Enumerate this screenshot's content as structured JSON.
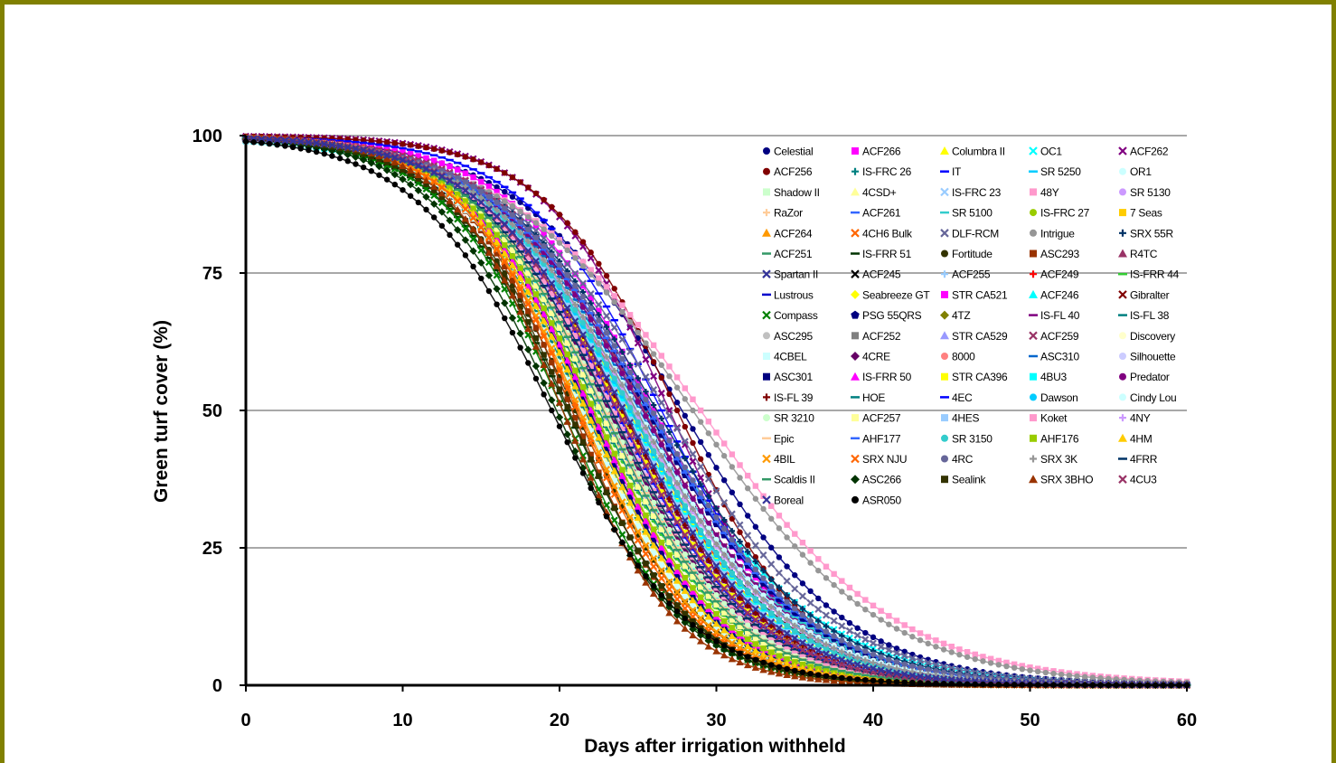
{
  "chart_data": {
    "type": "line",
    "title": "",
    "xlabel": "Days after irrigation withheld",
    "ylabel": "Green turf cover (%)",
    "xlim": [
      0,
      60
    ],
    "ylim": [
      0,
      100
    ],
    "x_ticks": [
      "0",
      "10",
      "20",
      "30",
      "40",
      "50",
      "60"
    ],
    "y_ticks": [
      "0",
      "25",
      "50",
      "75",
      "100"
    ],
    "grid": "horizontal",
    "legend_position": "top-right",
    "x": [
      0,
      1,
      2,
      3,
      4,
      5,
      6,
      7,
      8,
      9,
      10,
      11,
      12,
      13,
      14,
      15,
      16,
      17,
      18,
      19,
      20,
      21,
      22,
      23,
      24,
      25,
      26,
      27,
      28,
      29,
      30,
      31,
      32,
      33,
      34,
      35,
      36,
      37,
      38,
      39,
      40,
      41,
      42,
      43,
      44,
      45,
      46,
      47,
      48,
      49,
      50,
      51,
      52,
      53,
      54,
      55,
      56,
      57,
      58,
      59,
      60
    ],
    "series": [
      {
        "name": "Celestial",
        "color": "#000080",
        "marker": "circle",
        "mid": 27.8,
        "slope": 5.2
      },
      {
        "name": "ACF266",
        "color": "#ff00ff",
        "marker": "square",
        "mid": 26.0,
        "slope": 4.6
      },
      {
        "name": "Columbra II",
        "color": "#ffff00",
        "marker": "triangle",
        "mid": 22.0,
        "slope": 3.8
      },
      {
        "name": "OC1",
        "color": "#00ffff",
        "marker": "x",
        "mid": 25.5,
        "slope": 5.5
      },
      {
        "name": "ACF262",
        "color": "#800080",
        "marker": "x",
        "mid": 27.0,
        "slope": 4.0
      },
      {
        "name": "ACF256",
        "color": "#800000",
        "marker": "circle",
        "mid": 27.5,
        "slope": 4.2
      },
      {
        "name": "IS-FRC 26",
        "color": "#008080",
        "marker": "plus",
        "mid": 24.5,
        "slope": 4.8
      },
      {
        "name": "IT",
        "color": "#0000ff",
        "marker": "dash",
        "mid": 26.5,
        "slope": 4.4
      },
      {
        "name": "SR 5250",
        "color": "#00ccff",
        "marker": "dash",
        "mid": 25.0,
        "slope": 5.0
      },
      {
        "name": "OR1",
        "color": "#ccffff",
        "marker": "circle",
        "mid": 23.8,
        "slope": 4.5
      },
      {
        "name": "Shadow II",
        "color": "#ccffcc",
        "marker": "square",
        "mid": 22.5,
        "slope": 4.2
      },
      {
        "name": "4CSD+",
        "color": "#ffff99",
        "marker": "triangle",
        "mid": 21.5,
        "slope": 4.0
      },
      {
        "name": "IS-FRC 23",
        "color": "#99ccff",
        "marker": "x",
        "mid": 23.5,
        "slope": 4.6
      },
      {
        "name": "48Y",
        "color": "#ff99cc",
        "marker": "square",
        "mid": 29.0,
        "slope": 6.2
      },
      {
        "name": "SR 5130",
        "color": "#cc99ff",
        "marker": "circle",
        "mid": 24.0,
        "slope": 4.7
      },
      {
        "name": "RaZor",
        "color": "#ffcc99",
        "marker": "plus",
        "mid": 22.8,
        "slope": 4.3
      },
      {
        "name": "ACF261",
        "color": "#3366ff",
        "marker": "dash",
        "mid": 25.8,
        "slope": 4.9
      },
      {
        "name": "SR 5100",
        "color": "#33cccc",
        "marker": "dash",
        "mid": 24.8,
        "slope": 5.2
      },
      {
        "name": "IS-FRC 27",
        "color": "#99cc00",
        "marker": "circle",
        "mid": 21.8,
        "slope": 4.1
      },
      {
        "name": "7 Seas",
        "color": "#ffcc00",
        "marker": "square",
        "mid": 23.0,
        "slope": 4.4
      },
      {
        "name": "ACF264",
        "color": "#ff9900",
        "marker": "triangle",
        "mid": 22.2,
        "slope": 4.0
      },
      {
        "name": "4CH6 Bulk",
        "color": "#ff6600",
        "marker": "x",
        "mid": 21.2,
        "slope": 3.9
      },
      {
        "name": "DLF-RCM",
        "color": "#666699",
        "marker": "x",
        "mid": 26.8,
        "slope": 5.3
      },
      {
        "name": "Intrigue",
        "color": "#969696",
        "marker": "circle",
        "mid": 28.5,
        "slope": 6.0
      },
      {
        "name": "SRX 55R",
        "color": "#003366",
        "marker": "plus",
        "mid": 26.2,
        "slope": 5.1
      },
      {
        "name": "ACF251",
        "color": "#339966",
        "marker": "dash",
        "mid": 23.2,
        "slope": 4.3
      },
      {
        "name": "IS-FRR 51",
        "color": "#003300",
        "marker": "dash",
        "mid": 20.5,
        "slope": 4.0
      },
      {
        "name": "Fortitude",
        "color": "#333300",
        "marker": "circle",
        "mid": 21.0,
        "slope": 4.1
      },
      {
        "name": "ASC293",
        "color": "#993300",
        "marker": "square",
        "mid": 20.8,
        "slope": 3.7
      },
      {
        "name": "R4TC",
        "color": "#993366",
        "marker": "triangle",
        "mid": 24.2,
        "slope": 4.5
      },
      {
        "name": "Spartan II",
        "color": "#333399",
        "marker": "x",
        "mid": 23.6,
        "slope": 4.4
      },
      {
        "name": "ACF245",
        "color": "#000000",
        "marker": "x",
        "mid": 22.6,
        "slope": 4.6
      },
      {
        "name": "ACF255",
        "color": "#99ccff",
        "marker": "plus",
        "mid": 25.2,
        "slope": 4.7
      },
      {
        "name": "ACF249",
        "color": "#ff0000",
        "marker": "plus",
        "mid": 24.6,
        "slope": 4.5
      },
      {
        "name": "IS-FRR 44",
        "color": "#33cc33",
        "marker": "dash",
        "mid": 22.4,
        "slope": 4.2
      },
      {
        "name": "Lustrous",
        "color": "#0000cc",
        "marker": "dash",
        "mid": 23.4,
        "slope": 4.3
      },
      {
        "name": "Seabreeze GT",
        "color": "#ffff00",
        "marker": "diamond",
        "mid": 24.4,
        "slope": 4.6
      },
      {
        "name": "STR CA521",
        "color": "#ff00ff",
        "marker": "square",
        "mid": 23.7,
        "slope": 4.4
      },
      {
        "name": "ACF246",
        "color": "#00ffff",
        "marker": "triangle",
        "mid": 22.9,
        "slope": 4.3
      },
      {
        "name": "Gibralter",
        "color": "#800000",
        "marker": "x",
        "mid": 24.9,
        "slope": 4.8
      },
      {
        "name": "Compass",
        "color": "#008000",
        "marker": "x",
        "mid": 20.2,
        "slope": 3.9
      },
      {
        "name": "PSG 55QRS",
        "color": "#000080",
        "marker": "pentagon",
        "mid": 25.6,
        "slope": 5.0
      },
      {
        "name": "4TZ",
        "color": "#808000",
        "marker": "diamond",
        "mid": 22.1,
        "slope": 4.2
      },
      {
        "name": "IS-FL 40",
        "color": "#800080",
        "marker": "dash",
        "mid": 23.9,
        "slope": 4.5
      },
      {
        "name": "IS-FL 38",
        "color": "#008080",
        "marker": "dash",
        "mid": 21.6,
        "slope": 4.1
      },
      {
        "name": "ASC295",
        "color": "#c0c0c0",
        "marker": "circle",
        "mid": 24.7,
        "slope": 4.9
      },
      {
        "name": "ACF252",
        "color": "#808080",
        "marker": "square",
        "mid": 23.3,
        "slope": 4.4
      },
      {
        "name": "STR CA529",
        "color": "#9999ff",
        "marker": "triangle",
        "mid": 22.7,
        "slope": 4.3
      },
      {
        "name": "ACF259",
        "color": "#993366",
        "marker": "x",
        "mid": 25.4,
        "slope": 4.7
      },
      {
        "name": "Discovery",
        "color": "#ffffcc",
        "marker": "circle",
        "mid": 22.3,
        "slope": 4.1
      },
      {
        "name": "4CBEL",
        "color": "#ccffff",
        "marker": "square",
        "mid": 21.4,
        "slope": 4.0
      },
      {
        "name": "4CRE",
        "color": "#660066",
        "marker": "diamond",
        "mid": 23.1,
        "slope": 4.3
      },
      {
        "name": "8000",
        "color": "#ff8080",
        "marker": "circle",
        "mid": 24.1,
        "slope": 4.6
      },
      {
        "name": "ASC310",
        "color": "#0066cc",
        "marker": "dash",
        "mid": 25.1,
        "slope": 4.8
      },
      {
        "name": "Silhouette",
        "color": "#ccccff",
        "marker": "circle",
        "mid": 23.5,
        "slope": 4.5
      },
      {
        "name": "ASC301",
        "color": "#000080",
        "marker": "square",
        "mid": 21.9,
        "slope": 4.0
      },
      {
        "name": "IS-FRR 50",
        "color": "#ff00ff",
        "marker": "triangle",
        "mid": 22.0,
        "slope": 4.1
      },
      {
        "name": "STR CA396",
        "color": "#ffff00",
        "marker": "square",
        "mid": 23.8,
        "slope": 4.4
      },
      {
        "name": "4BU3",
        "color": "#00ffff",
        "marker": "square",
        "mid": 24.3,
        "slope": 4.6
      },
      {
        "name": "Predator",
        "color": "#800080",
        "marker": "circle",
        "mid": 25.3,
        "slope": 4.8
      },
      {
        "name": "IS-FL 39",
        "color": "#800000",
        "marker": "plus",
        "mid": 24.0,
        "slope": 4.5
      },
      {
        "name": "HOE",
        "color": "#008080",
        "marker": "dash",
        "mid": 22.5,
        "slope": 4.2
      },
      {
        "name": "4EC",
        "color": "#0000ff",
        "marker": "dash",
        "mid": 23.6,
        "slope": 4.4
      },
      {
        "name": "Dawson",
        "color": "#00ccff",
        "marker": "circle",
        "mid": 24.5,
        "slope": 4.7
      },
      {
        "name": "Cindy Lou",
        "color": "#ccffff",
        "marker": "circle",
        "mid": 25.0,
        "slope": 4.9
      },
      {
        "name": "SR 3210",
        "color": "#ccffcc",
        "marker": "circle",
        "mid": 23.0,
        "slope": 4.3
      },
      {
        "name": "ACF257",
        "color": "#ffff99",
        "marker": "square",
        "mid": 22.6,
        "slope": 4.2
      },
      {
        "name": "4HES",
        "color": "#99ccff",
        "marker": "square",
        "mid": 24.2,
        "slope": 4.6
      },
      {
        "name": "Koket",
        "color": "#ff99cc",
        "marker": "square",
        "mid": 23.4,
        "slope": 4.3
      },
      {
        "name": "4NY",
        "color": "#cc99ff",
        "marker": "plus",
        "mid": 24.8,
        "slope": 4.8
      },
      {
        "name": "Epic",
        "color": "#ffcc99",
        "marker": "dash",
        "mid": 22.9,
        "slope": 4.2
      },
      {
        "name": "AHF177",
        "color": "#3366ff",
        "marker": "dash",
        "mid": 25.7,
        "slope": 5.0
      },
      {
        "name": "SR 3150",
        "color": "#33cccc",
        "marker": "circle",
        "mid": 24.6,
        "slope": 4.7
      },
      {
        "name": "AHF176",
        "color": "#99cc00",
        "marker": "square",
        "mid": 22.2,
        "slope": 4.1
      },
      {
        "name": "4HM",
        "color": "#ffcc00",
        "marker": "triangle",
        "mid": 21.7,
        "slope": 4.0
      },
      {
        "name": "4BIL",
        "color": "#ff9900",
        "marker": "x",
        "mid": 21.3,
        "slope": 3.9
      },
      {
        "name": "SRX NJU",
        "color": "#ff6600",
        "marker": "x",
        "mid": 21.1,
        "slope": 3.8
      },
      {
        "name": "4RC",
        "color": "#666699",
        "marker": "circle",
        "mid": 25.9,
        "slope": 5.0
      },
      {
        "name": "SRX 3K",
        "color": "#969696",
        "marker": "plus",
        "mid": 24.9,
        "slope": 4.8
      },
      {
        "name": "4FRR",
        "color": "#003366",
        "marker": "dash",
        "mid": 23.3,
        "slope": 4.4
      },
      {
        "name": "Scaldis II",
        "color": "#339966",
        "marker": "dash",
        "mid": 22.8,
        "slope": 4.2
      },
      {
        "name": "ASC266",
        "color": "#003300",
        "marker": "diamond",
        "mid": 19.8,
        "slope": 4.0
      },
      {
        "name": "Sealink",
        "color": "#333300",
        "marker": "square",
        "mid": 20.6,
        "slope": 3.9
      },
      {
        "name": "SRX 3BHO",
        "color": "#993300",
        "marker": "triangle",
        "mid": 20.2,
        "slope": 3.6
      },
      {
        "name": "4CU3",
        "color": "#993366",
        "marker": "x",
        "mid": 23.7,
        "slope": 4.4
      },
      {
        "name": "Boreal",
        "color": "#333399",
        "marker": "x",
        "mid": 24.1,
        "slope": 4.6
      },
      {
        "name": "ASR050",
        "color": "#000000",
        "marker": "circle",
        "mid": 19.5,
        "slope": 4.3
      }
    ]
  }
}
